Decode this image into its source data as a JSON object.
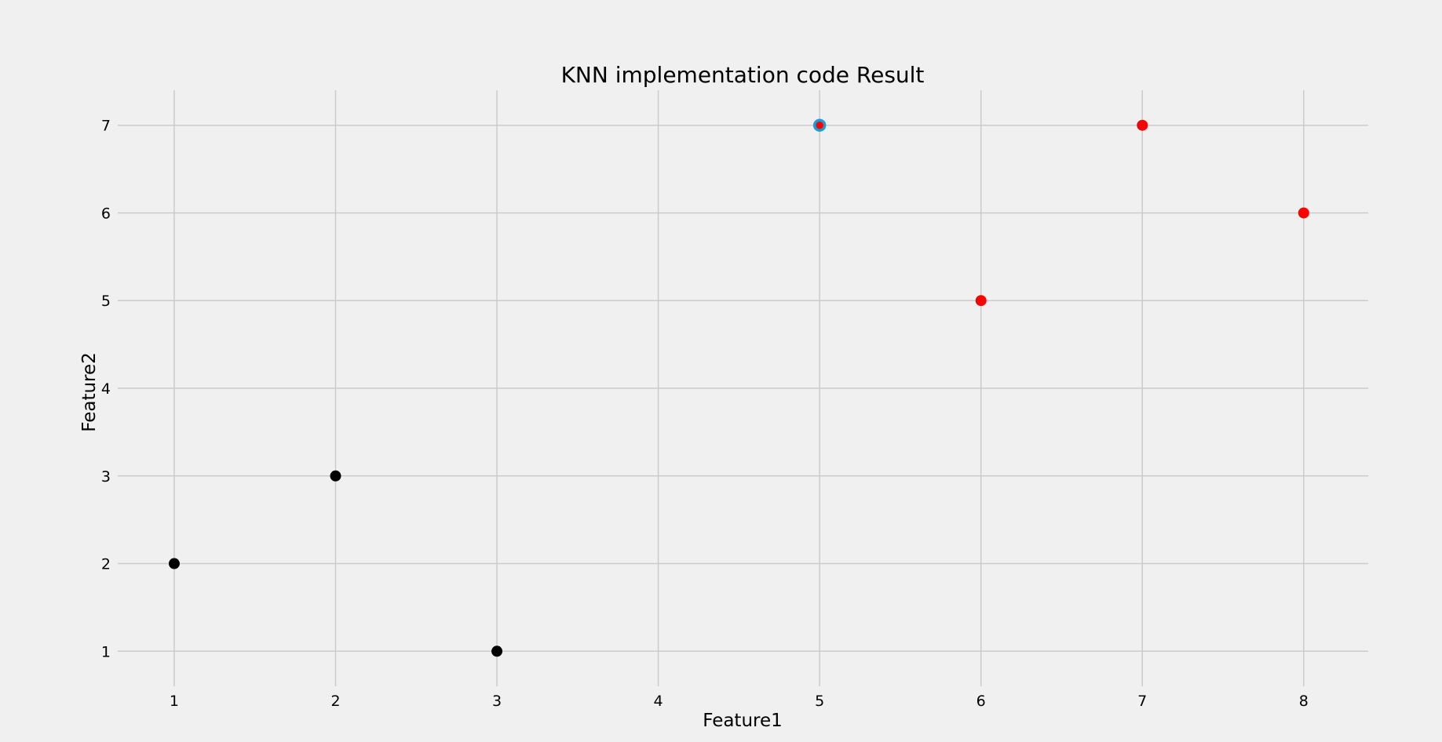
{
  "chart_data": {
    "type": "scatter",
    "title": "KNN implementation code Result",
    "xlabel": "Feature1",
    "ylabel": "Feature2",
    "xlim": [
      0.65,
      8.4
    ],
    "ylim": [
      0.6,
      7.4
    ],
    "xticks": [
      1,
      2,
      3,
      4,
      5,
      6,
      7,
      8
    ],
    "yticks": [
      1,
      2,
      3,
      4,
      5,
      6,
      7
    ],
    "grid": true,
    "series": [
      {
        "color": "#000000",
        "points": [
          [
            1,
            2
          ],
          [
            2,
            3
          ],
          [
            3,
            1
          ]
        ]
      },
      {
        "color": "#ff0000",
        "points": [
          [
            6,
            5
          ],
          [
            7,
            7
          ],
          [
            8,
            6
          ]
        ]
      },
      {
        "color": "#ff0000",
        "edge_color": "#1f9bd6",
        "marker": "ringed",
        "points": [
          [
            5,
            7
          ]
        ]
      }
    ]
  }
}
